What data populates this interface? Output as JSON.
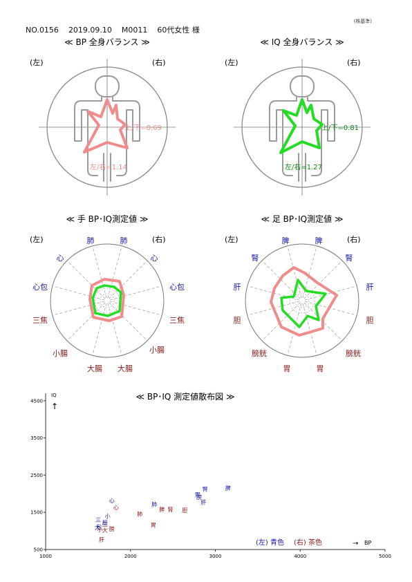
{
  "header": {
    "no": "NO.0156",
    "date": "2019.09.10",
    "code": "M0011",
    "person": "60代女性 様",
    "corner_note": "(株基準)"
  },
  "panels": {
    "bp_balance": {
      "title": "≪ BP 全身バランス ≫",
      "left": "(左)",
      "right": "(右)",
      "ratio_ud": "上/下=0.69",
      "ratio_lr": "左/右=1.14",
      "color": "#f08c8c"
    },
    "iq_balance": {
      "title": "≪ IQ 全身バランス ≫",
      "left": "(左)",
      "right": "(右)",
      "ratio_ud": "上/下=0.81",
      "ratio_lr": "左/右=1.27",
      "color": "#22dd22"
    },
    "hand": {
      "title": "≪ 手 BP･IQ測定値 ≫",
      "left": "(左)",
      "right": "(右)",
      "labels_left": [
        "肺",
        "心",
        "心包",
        "三焦",
        "小腸",
        "大腸"
      ],
      "labels_right": [
        "肺",
        "心",
        "心包",
        "三焦",
        "小腸",
        "大腸"
      ]
    },
    "foot": {
      "title": "≪ 足 BP･IQ測定値 ≫",
      "left": "(左)",
      "right": "(右)",
      "labels_left": [
        "脾",
        "腎",
        "肝",
        "胆",
        "膀胱",
        "胃"
      ],
      "labels_right": [
        "脾",
        "腎",
        "肝",
        "胆",
        "膀胱",
        "胃"
      ]
    }
  },
  "scatter": {
    "title": "≪ BP･IQ 測定値散布図 ≫",
    "ylabel": "IQ",
    "xlabel": "BP",
    "legend_left": "(左) 青色",
    "legend_right": "(右) 茶色",
    "color_left": "#1a1aa8",
    "color_right": "#8b1a1a"
  },
  "chart_data": {
    "type": "scatter",
    "title": "≪ BP･IQ 測定値散布図 ≫",
    "xlabel": "BP",
    "ylabel": "IQ",
    "xlim": [
      1000,
      5000
    ],
    "ylim": [
      500,
      4700
    ],
    "x_ticks": [
      1000,
      2000,
      3000,
      4000,
      5000
    ],
    "y_ticks": [
      500,
      1500,
      2500,
      3500,
      4500
    ],
    "series": [
      {
        "name": "(左) 青色",
        "points": [
          {
            "label": "脾",
            "x": 3150,
            "y": 2100
          },
          {
            "label": "腎",
            "x": 2880,
            "y": 2070
          },
          {
            "label": "胃",
            "x": 2790,
            "y": 1920
          },
          {
            "label": "膀",
            "x": 2810,
            "y": 1860
          },
          {
            "label": "肝",
            "x": 2860,
            "y": 1720
          },
          {
            "label": "肺",
            "x": 2280,
            "y": 1660
          },
          {
            "label": "心",
            "x": 1780,
            "y": 1760
          },
          {
            "label": "小",
            "x": 1730,
            "y": 1350
          },
          {
            "label": "胆",
            "x": 1700,
            "y": 1170
          },
          {
            "label": "三",
            "x": 1620,
            "y": 1240
          },
          {
            "label": "包",
            "x": 1630,
            "y": 1060
          },
          {
            "label": "大",
            "x": 1610,
            "y": 1040
          }
        ]
      },
      {
        "name": "(右) 茶色",
        "points": [
          {
            "label": "心",
            "x": 1830,
            "y": 1580
          },
          {
            "label": "脾",
            "x": 2370,
            "y": 1520
          },
          {
            "label": "腎",
            "x": 2470,
            "y": 1520
          },
          {
            "label": "胆",
            "x": 2640,
            "y": 1500
          },
          {
            "label": "肺",
            "x": 2110,
            "y": 1400
          },
          {
            "label": "胃",
            "x": 2270,
            "y": 1100
          },
          {
            "label": "三",
            "x": 1700,
            "y": 1120
          },
          {
            "label": "膀",
            "x": 1780,
            "y": 1000
          },
          {
            "label": "大",
            "x": 1700,
            "y": 960
          },
          {
            "label": "小",
            "x": 1640,
            "y": 980
          },
          {
            "label": "肝",
            "x": 1660,
            "y": 710
          }
        ]
      }
    ]
  }
}
